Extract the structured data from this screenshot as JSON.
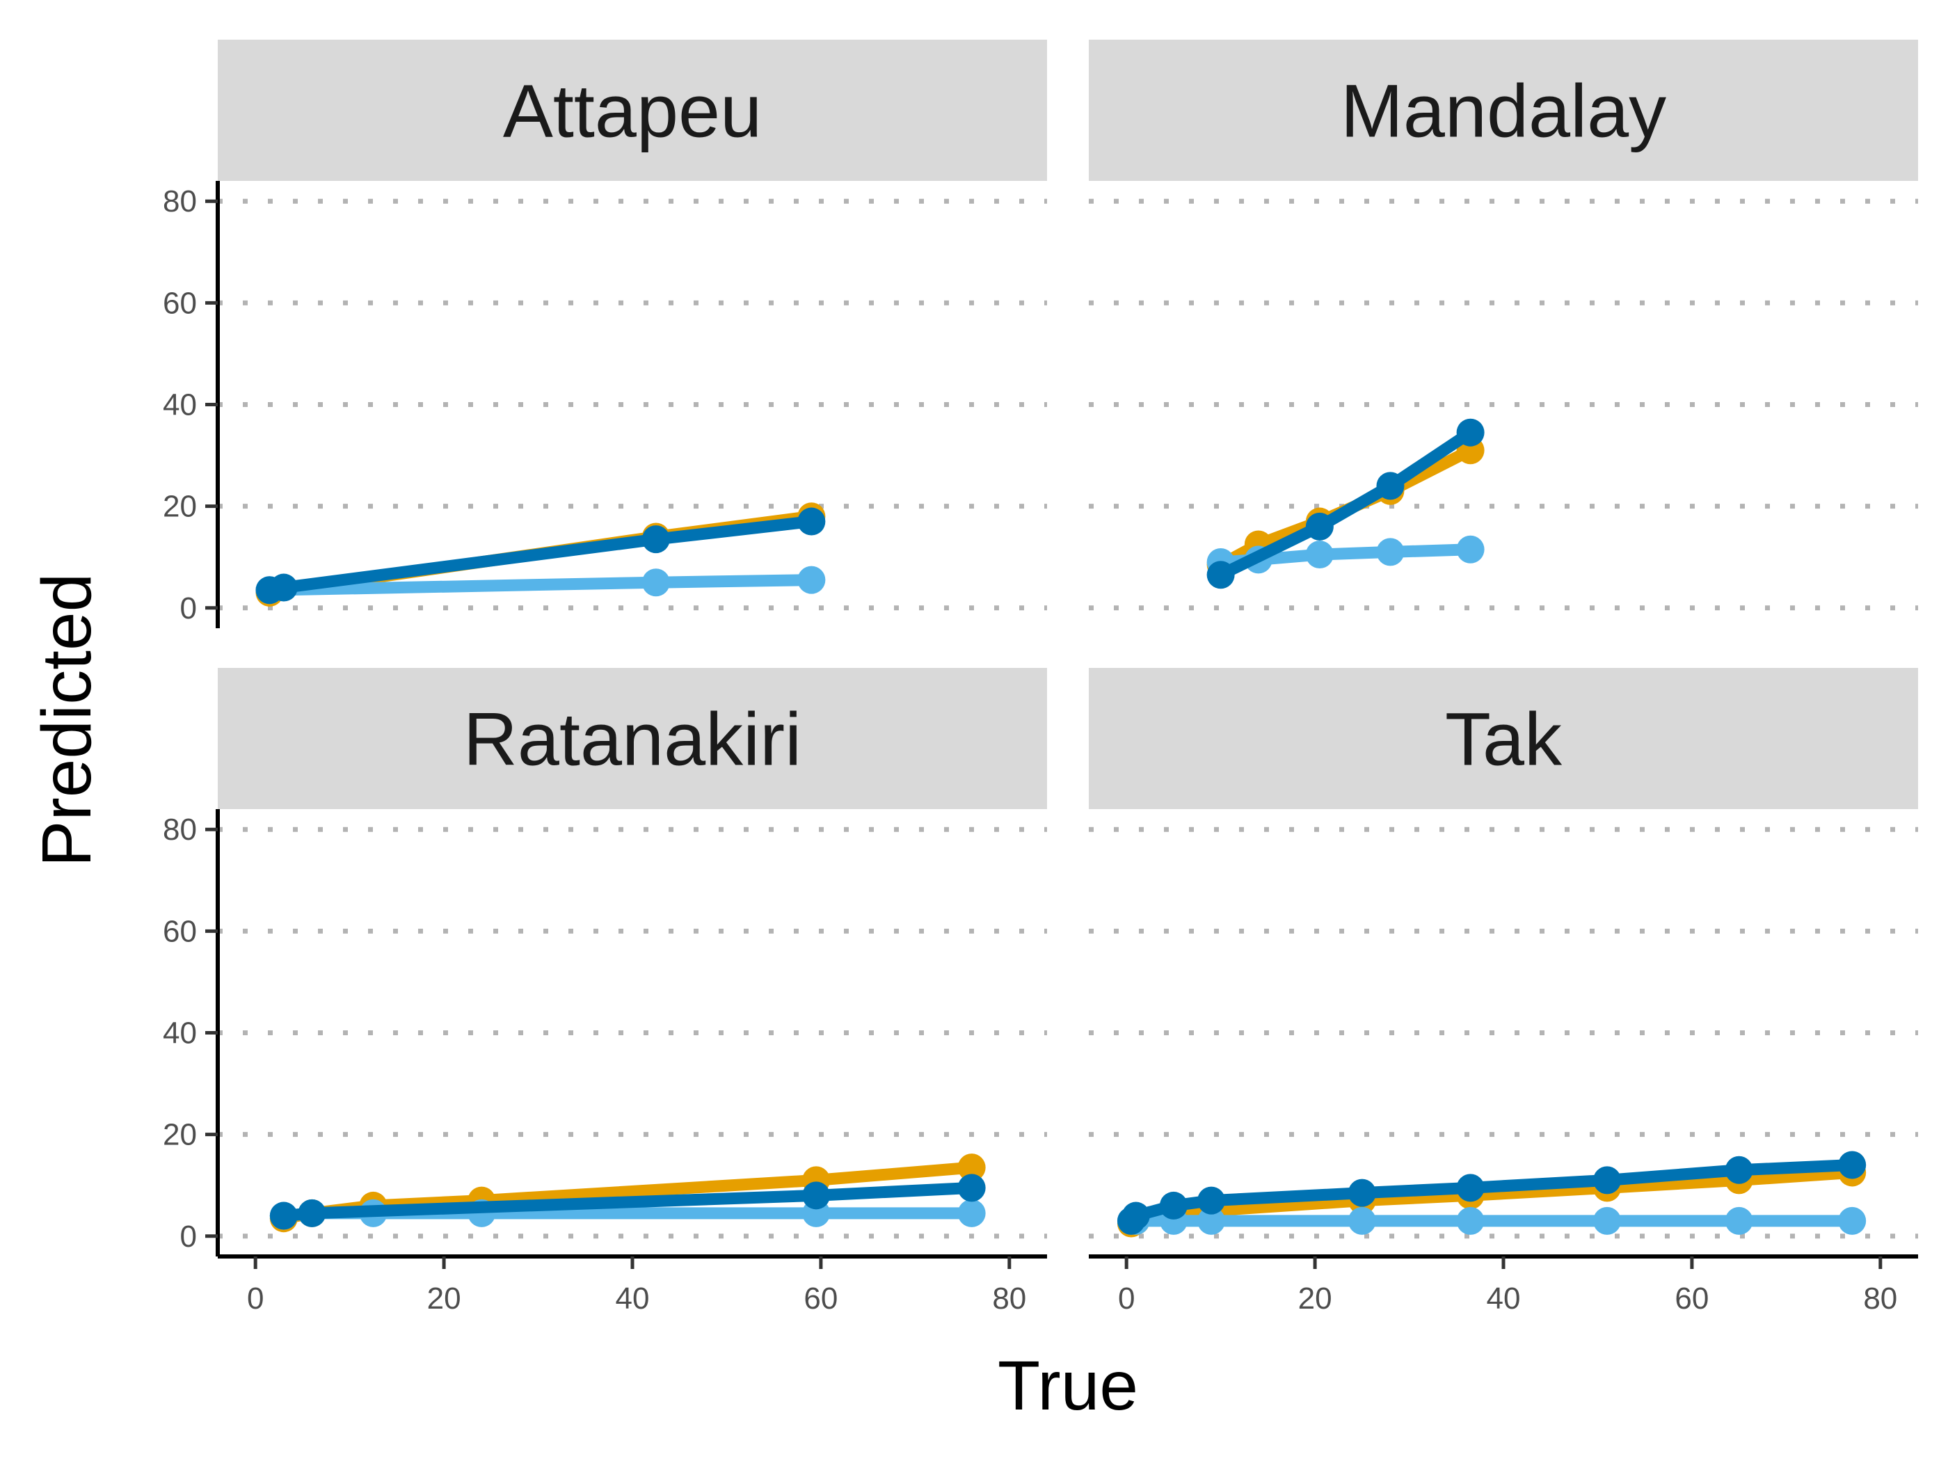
{
  "chart_data": {
    "type": "line",
    "xlabel": "True",
    "ylabel": "Predicted",
    "xlim": [
      -4,
      84
    ],
    "ylim": [
      -4,
      84
    ],
    "x_ticks": [
      0,
      20,
      40,
      60,
      80
    ],
    "y_ticks": [
      0,
      20,
      40,
      60,
      80
    ],
    "grid": "horizontal dotted",
    "legend": "none",
    "series_colors": [
      "#E69F00",
      "#56B4E9",
      "#0072B2"
    ],
    "panels": [
      {
        "title": "Attapeu",
        "series": [
          {
            "color": "#E69F00",
            "x": [
              1.5,
              42.5,
              59
            ],
            "y": [
              3,
              14,
              18
            ]
          },
          {
            "color": "#56B4E9",
            "x": [
              1.5,
              42.5,
              59
            ],
            "y": [
              3.5,
              5,
              5.5
            ]
          },
          {
            "color": "#0072B2",
            "x": [
              1.5,
              3,
              42.5,
              59
            ],
            "y": [
              3.5,
              4,
              13.5,
              17
            ]
          }
        ]
      },
      {
        "title": "Mandalay",
        "series": [
          {
            "color": "#E69F00",
            "x": [
              10,
              14,
              20.5,
              28,
              36.5
            ],
            "y": [
              8.5,
              12.5,
              17,
              23,
              31
            ]
          },
          {
            "color": "#56B4E9",
            "x": [
              10,
              14,
              20.5,
              28,
              36.5
            ],
            "y": [
              9,
              9.5,
              10.5,
              11,
              11.5
            ]
          },
          {
            "color": "#0072B2",
            "x": [
              10,
              20.5,
              28,
              36.5
            ],
            "y": [
              6.5,
              16,
              24,
              34.5
            ]
          }
        ]
      },
      {
        "title": "Ratanakiri",
        "series": [
          {
            "color": "#E69F00",
            "x": [
              3,
              6,
              12.5,
              24,
              59.5,
              76
            ],
            "y": [
              3.5,
              4.5,
              6,
              7,
              11,
              13.5
            ]
          },
          {
            "color": "#56B4E9",
            "x": [
              3,
              6,
              12.5,
              24,
              59.5,
              76
            ],
            "y": [
              4,
              4.5,
              4.5,
              4.5,
              4.5,
              4.5
            ]
          },
          {
            "color": "#0072B2",
            "x": [
              3,
              6,
              59.5,
              76
            ],
            "y": [
              4,
              4.5,
              8,
              9.5
            ]
          }
        ]
      },
      {
        "title": "Tak",
        "series": [
          {
            "color": "#E69F00",
            "x": [
              0.5,
              1,
              5,
              9,
              25,
              36.5,
              51,
              65,
              77
            ],
            "y": [
              2.5,
              3,
              4,
              5,
              7,
              8,
              9.5,
              11,
              12.5
            ]
          },
          {
            "color": "#56B4E9",
            "x": [
              0.5,
              1,
              5,
              9,
              25,
              36.5,
              51,
              65,
              77
            ],
            "y": [
              3,
              3,
              3,
              3,
              3,
              3,
              3,
              3,
              3
            ]
          },
          {
            "color": "#0072B2",
            "x": [
              0.5,
              1,
              5,
              9,
              25,
              36.5,
              51,
              65,
              77
            ],
            "y": [
              3,
              4,
              6,
              7,
              8.5,
              9.5,
              11,
              13,
              14
            ]
          }
        ]
      }
    ]
  }
}
